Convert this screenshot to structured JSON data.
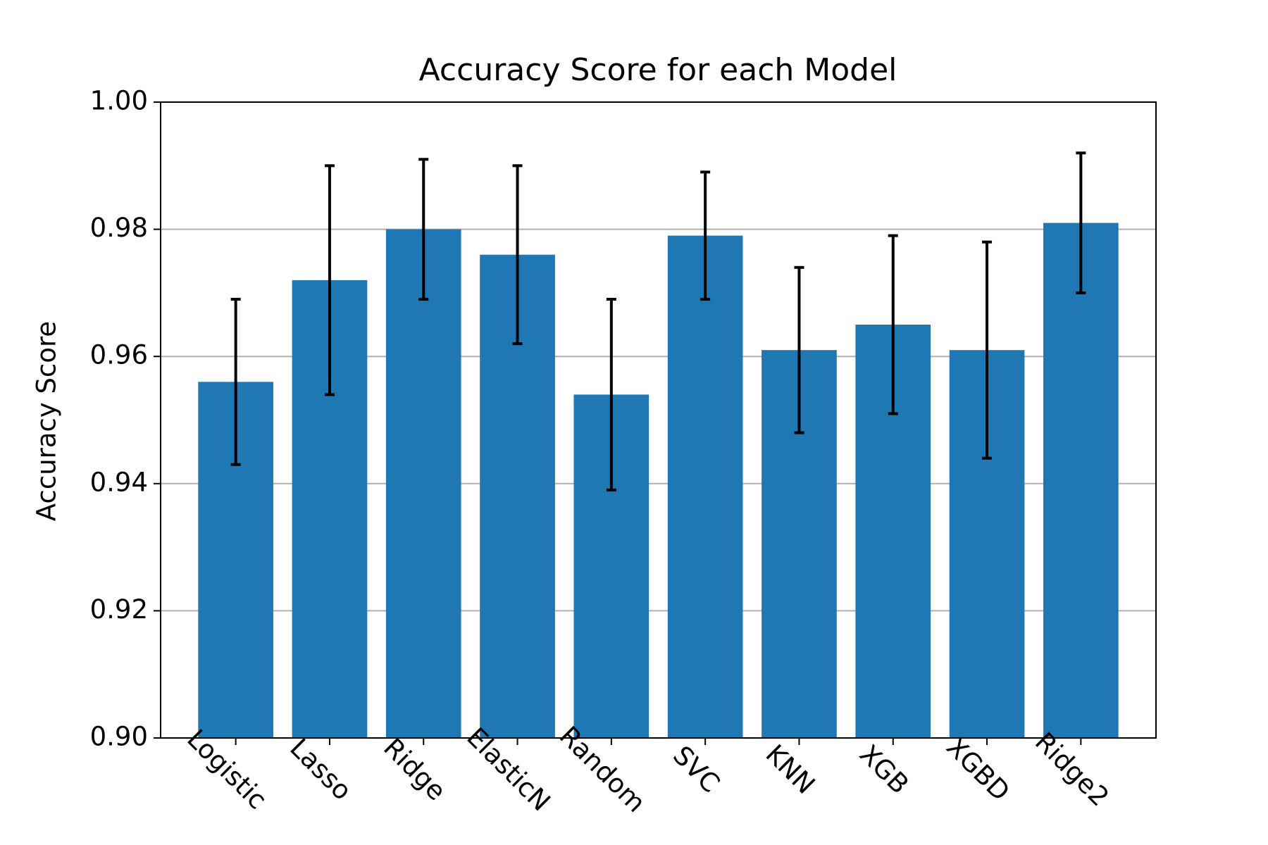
{
  "chart_data": {
    "type": "bar",
    "title": "Accuracy Score for each Model",
    "y_label": "Accuracy Score",
    "categories": [
      "Logistic",
      "Lasso",
      "Ridge",
      "ElasticN",
      "Random",
      "SVC",
      "KNN",
      "XGB",
      "XGBD",
      "Ridge2"
    ],
    "values": [
      0.956,
      0.972,
      0.98,
      0.976,
      0.954,
      0.979,
      0.961,
      0.965,
      0.961,
      0.981
    ],
    "errors": [
      0.013,
      0.018,
      0.011,
      0.014,
      0.015,
      0.01,
      0.013,
      0.014,
      0.017,
      0.011
    ],
    "color": "#1f77b4",
    "error_color": "#000000",
    "ylim": [
      0.9,
      1.0
    ],
    "yticks": [
      {
        "value": 0.9,
        "label": "0.90"
      },
      {
        "value": 0.92,
        "label": "0.92"
      },
      {
        "value": 0.94,
        "label": "0.94"
      },
      {
        "value": 0.96,
        "label": "0.96"
      },
      {
        "value": 0.98,
        "label": "0.98"
      },
      {
        "value": 1.0,
        "label": "1.00"
      }
    ],
    "grid": true
  }
}
